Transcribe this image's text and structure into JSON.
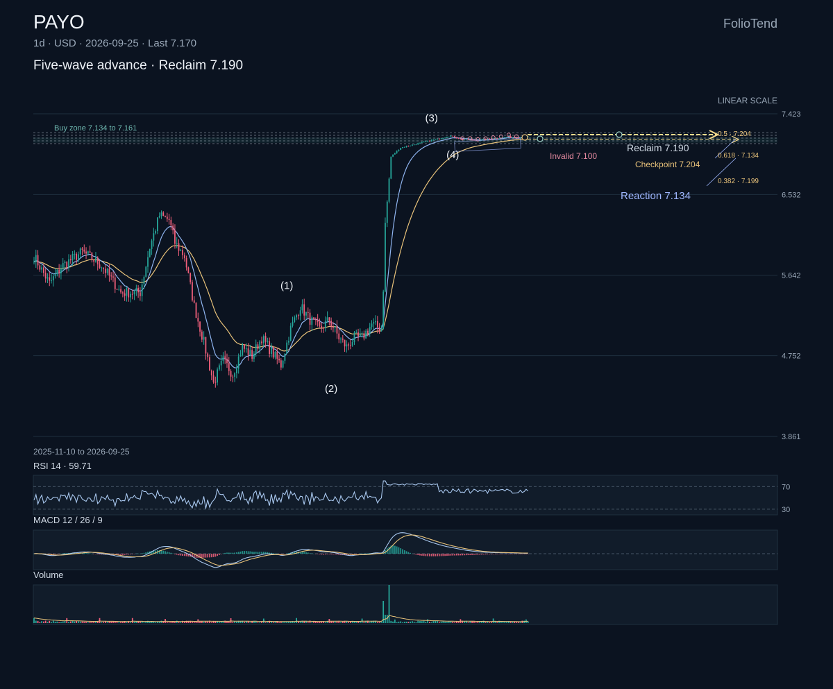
{
  "header": {
    "ticker": "PAYO",
    "interval": "1d",
    "currency": "USD",
    "date": "2026-09-25",
    "last_label": "Last 7.170",
    "subline": "1d · USD · 2026-09-25 · Last 7.170",
    "headline": "Five-wave advance · Reclaim 7.190",
    "brand": "FolioTend"
  },
  "chart_data": [
    {
      "type": "candlestick",
      "scale_label": "LINEAR SCALE",
      "ylim": [
        3.861,
        7.423
      ],
      "y_ticks": [
        "7.423",
        "6.532",
        "5.642",
        "4.752",
        "3.861"
      ],
      "date_range": "2025-11-10 to 2026-09-25",
      "anchors": [
        [
          0,
          5.85
        ],
        [
          8,
          5.55
        ],
        [
          15,
          5.75
        ],
        [
          25,
          5.9
        ],
        [
          35,
          5.75
        ],
        [
          45,
          5.45
        ],
        [
          55,
          5.45
        ],
        [
          60,
          5.95
        ],
        [
          65,
          6.3
        ],
        [
          70,
          6.25
        ],
        [
          73,
          6.0
        ],
        [
          78,
          5.85
        ],
        [
          83,
          5.3
        ],
        [
          88,
          4.9
        ],
        [
          93,
          4.45
        ],
        [
          98,
          4.7
        ],
        [
          103,
          4.55
        ],
        [
          108,
          4.85
        ],
        [
          113,
          4.75
        ],
        [
          118,
          4.95
        ],
        [
          123,
          4.8
        ],
        [
          128,
          4.65
        ],
        [
          133,
          5.05
        ],
        [
          138,
          5.3
        ],
        [
          143,
          5.15
        ],
        [
          148,
          5.05
        ],
        [
          153,
          5.15
        ],
        [
          158,
          4.95
        ],
        [
          162,
          4.85
        ],
        [
          166,
          4.95
        ],
        [
          170,
          4.95
        ],
        [
          175,
          5.1
        ],
        [
          180,
          5.05
        ],
        [
          181,
          5.5
        ],
        [
          182,
          6.2
        ],
        [
          184,
          6.7
        ],
        [
          185,
          6.95
        ],
        [
          190,
          7.05
        ],
        [
          200,
          7.1
        ],
        [
          210,
          7.15
        ],
        [
          216,
          7.18
        ],
        [
          222,
          7.14
        ],
        [
          230,
          7.13
        ],
        [
          238,
          7.15
        ],
        [
          246,
          7.17
        ],
        [
          252,
          7.16
        ],
        [
          256,
          7.17
        ]
      ],
      "n_bars": 257,
      "wave_labels": [
        {
          "label": "(1)",
          "bar": 131,
          "price": 5.38,
          "pos": "above"
        },
        {
          "label": "(2)",
          "bar": 154,
          "price": 4.52,
          "pos": "below"
        },
        {
          "label": "(3)",
          "bar": 206,
          "price": 7.23,
          "pos": "above"
        },
        {
          "label": "(4)",
          "bar": 217,
          "price": 7.1,
          "pos": "below"
        }
      ],
      "buy_zone": {
        "label": "Buy zone 7.134 to 7.161",
        "low": 7.134,
        "high": 7.161
      },
      "levels": [
        {
          "label": "Reclaim 7.190",
          "price": 7.19,
          "color": "#cfd8e3"
        },
        {
          "label": "Invalid 7.100",
          "price": 7.1,
          "color": "#e48aa0"
        },
        {
          "label": "Checkpoint 7.204",
          "price": 7.204,
          "color": "#e8c27a"
        },
        {
          "label": "Reaction 7.134",
          "price": 7.134,
          "color": "#9fb7ff"
        }
      ],
      "fib_labels": [
        "0.5 · 7.204",
        "0.618 · 7.134",
        "0.382 · 7.199"
      ],
      "colors": {
        "up": "#26a69a",
        "down": "#ef5f7a",
        "ma_fast": "#8fb4ef",
        "ma_slow": "#e8c27a",
        "target": "#f5d98a"
      }
    },
    {
      "type": "line",
      "title": "RSI 14 · 59.71",
      "levels": [
        "70",
        "30"
      ]
    },
    {
      "type": "bar",
      "title": "MACD 12 / 26 / 9"
    },
    {
      "type": "bar",
      "title": "Volume"
    }
  ]
}
